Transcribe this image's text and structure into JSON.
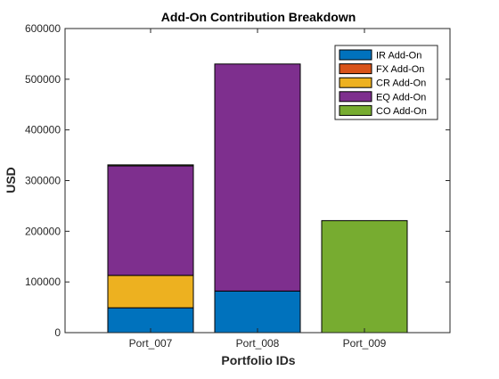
{
  "chart_data": {
    "type": "bar",
    "stacked": true,
    "title": "Add-On Contribution Breakdown",
    "xlabel": "Portfolio IDs",
    "ylabel": "USD",
    "categories": [
      "Port_007",
      "Port_008",
      "Port_009"
    ],
    "ylim": [
      0,
      600000
    ],
    "yticks": [
      0,
      100000,
      200000,
      300000,
      400000,
      500000,
      600000
    ],
    "ytick_labels": [
      "0",
      "100000",
      "200000",
      "300000",
      "400000",
      "500000",
      "600000"
    ],
    "grid": false,
    "legend_position": "top-right",
    "series": [
      {
        "name": "IR Add-On",
        "color": "#0072BD",
        "values": [
          49000,
          82000,
          0
        ]
      },
      {
        "name": "FX Add-On",
        "color": "#D95319",
        "values": [
          0,
          0,
          0
        ]
      },
      {
        "name": "CR Add-On",
        "color": "#EDB120",
        "values": [
          64000,
          0,
          0
        ]
      },
      {
        "name": "EQ Add-On",
        "color": "#7E2F8E",
        "values": [
          216000,
          448000,
          0
        ]
      },
      {
        "name": "CO Add-On",
        "color": "#77AC30",
        "values": [
          2000,
          0,
          221000
        ]
      }
    ]
  }
}
